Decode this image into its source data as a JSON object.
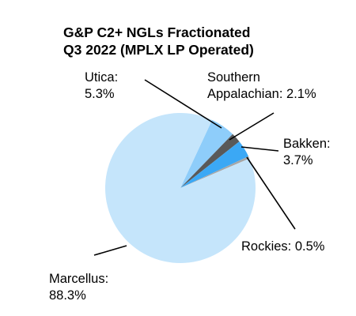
{
  "chart_data": {
    "type": "pie",
    "title": "G&P C2+ NGLs Fractionated\nQ3 2022 (MPLX LP Operated)",
    "categories": [
      "Utica:",
      "Southern Appalachian:",
      "Bakken:",
      "Rockies:",
      "Marcellus:"
    ],
    "values": [
      5.3,
      2.1,
      3.7,
      0.5,
      88.3
    ],
    "value_labels": [
      "5.3%",
      "2.1%",
      "3.7%",
      "0.5%",
      "88.3%"
    ],
    "colors": [
      "#8ecdfa",
      "#595959",
      "#3ba8f5",
      "#a6a6a6",
      "#c5e5fb"
    ]
  }
}
